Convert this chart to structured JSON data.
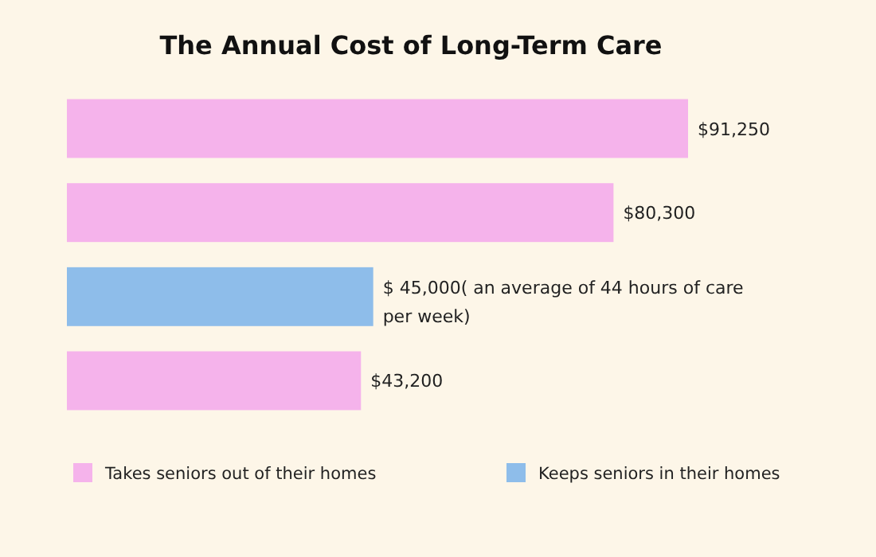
{
  "chart_data": {
    "type": "bar",
    "orientation": "horizontal",
    "title": "The Annual Cost of Long-Term Care",
    "categories": [
      null,
      null,
      null,
      null
    ],
    "stacked": true,
    "series": [
      {
        "name": "Takes seniors out of their homes",
        "color": "#f5b3eb",
        "values": [
          91250,
          80300,
          null,
          43200
        ],
        "value_labels": [
          "$91,250",
          "$80,300",
          null,
          "$43,200"
        ]
      },
      {
        "name": "Keeps seniors in their homes",
        "color": "#8ebdea",
        "values": [
          null,
          null,
          45000,
          null
        ],
        "value_labels": [
          null,
          null,
          "$ 45,000( an average of 44 hours of care per week)",
          null
        ]
      }
    ],
    "legend": "bottom"
  }
}
